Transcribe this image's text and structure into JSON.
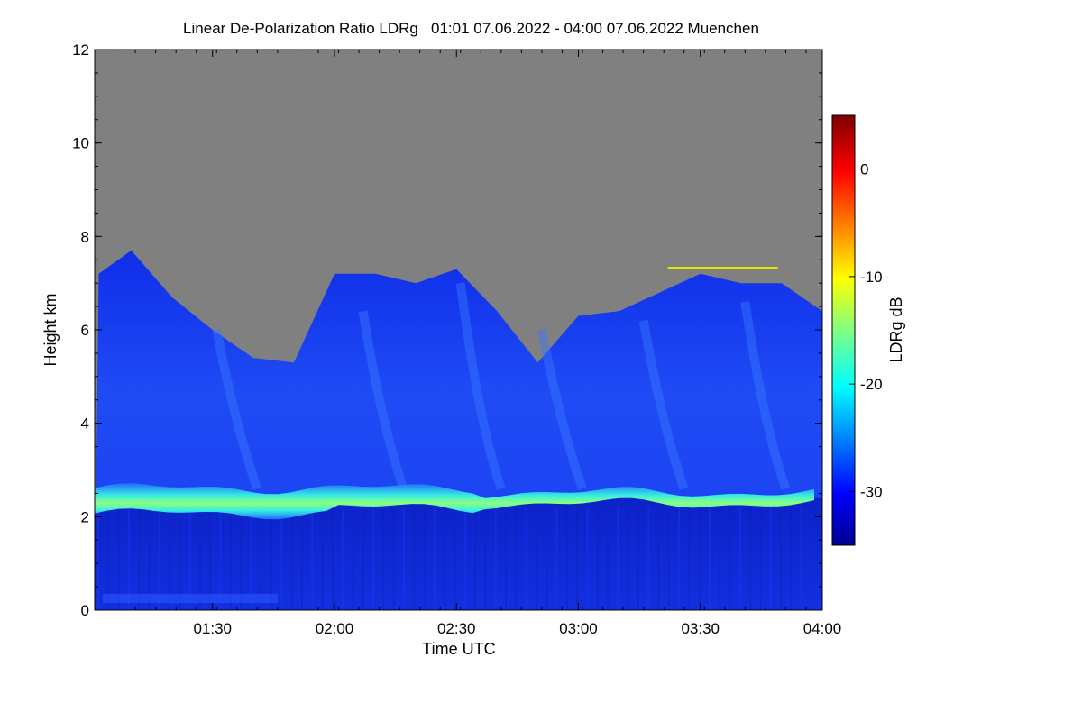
{
  "chart_data": {
    "type": "heatmap",
    "title": "Linear De-Polarization Ratio LDRg   01:01 07.06.2022 - 04:00 07.06.2022 Muenchen",
    "xlabel": "Time UTC",
    "ylabel": "Height km",
    "colorbar_label": "LDRg dB",
    "x_range": [
      "01:01",
      "04:00"
    ],
    "x_ticks": [
      "01:30",
      "02:00",
      "02:30",
      "03:00",
      "03:30",
      "04:00"
    ],
    "y_range": [
      0,
      12
    ],
    "y_ticks": [
      "0",
      "2",
      "4",
      "6",
      "8",
      "10",
      "12"
    ],
    "colorbar_range": [
      -35,
      5
    ],
    "colorbar_ticks": [
      "0",
      "-10",
      "-20",
      "-30"
    ],
    "colormap": "jet",
    "no_signal_color": "#808080",
    "features": {
      "melting_layer_height_km": 2.4,
      "melting_layer_ldr_db": -20,
      "cloud_ldr_db": -29,
      "below_melting_ldr_db": -33,
      "cloud_top_km": [
        {
          "time": "01:02",
          "top": 7.2
        },
        {
          "time": "01:10",
          "top": 7.7
        },
        {
          "time": "01:20",
          "top": 6.7
        },
        {
          "time": "01:30",
          "top": 6.0
        },
        {
          "time": "01:40",
          "top": 5.4
        },
        {
          "time": "01:50",
          "top": 5.3
        },
        {
          "time": "02:00",
          "top": 7.2
        },
        {
          "time": "02:10",
          "top": 7.2
        },
        {
          "time": "02:20",
          "top": 7.0
        },
        {
          "time": "02:30",
          "top": 7.3
        },
        {
          "time": "02:40",
          "top": 6.4
        },
        {
          "time": "02:50",
          "top": 5.3
        },
        {
          "time": "03:00",
          "top": 6.3
        },
        {
          "time": "03:10",
          "top": 6.4
        },
        {
          "time": "03:20",
          "top": 6.8
        },
        {
          "time": "03:30",
          "top": 7.2
        },
        {
          "time": "03:40",
          "top": 7.0
        },
        {
          "time": "03:50",
          "top": 7.0
        },
        {
          "time": "04:00",
          "top": 6.4
        }
      ]
    }
  }
}
